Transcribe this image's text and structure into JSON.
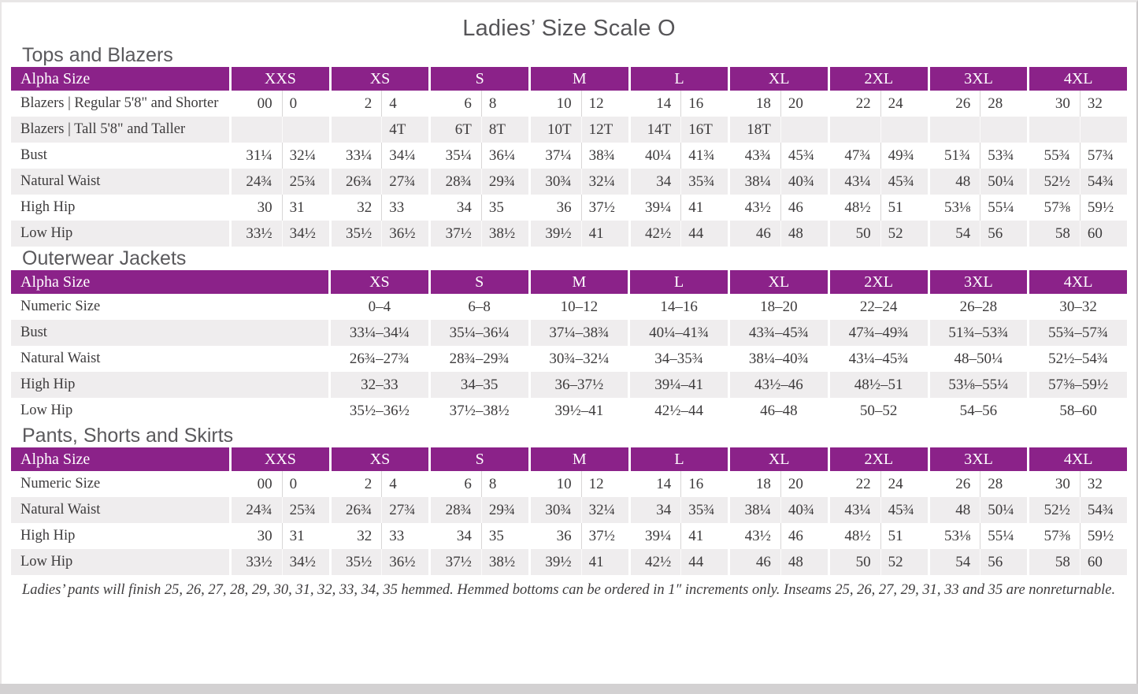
{
  "page": {
    "title": "Ladies’ Size Scale O",
    "footnote": "Ladies’ pants will finish 25, 26, 27, 28, 29, 30, 31, 32, 33, 34, 35 hemmed. Hemmed bottoms can be ordered in 1″ increments only. Inseams 25, 26, 27, 29, 31, 33 and 35 are nonreturnable."
  },
  "colors": {
    "accent": "#8b2289",
    "stripe": "#efedee",
    "heading_text": "#5a595c",
    "body_text": "#3d3b3c",
    "header_text": "#ffffff"
  },
  "tables": [
    {
      "heading": "Tops and Blazers",
      "type": "paired",
      "header_label": "Alpha Size",
      "sizes": [
        "XXS",
        "XS",
        "S",
        "M",
        "L",
        "XL",
        "2XL",
        "3XL",
        "4XL"
      ],
      "rows": [
        {
          "label": "Blazers | Regular 5'8\" and Shorter",
          "pairs": [
            [
              "00",
              "0"
            ],
            [
              "2",
              "4"
            ],
            [
              "6",
              "8"
            ],
            [
              "10",
              "12"
            ],
            [
              "14",
              "16"
            ],
            [
              "18",
              "20"
            ],
            [
              "22",
              "24"
            ],
            [
              "26",
              "28"
            ],
            [
              "30",
              "32"
            ]
          ]
        },
        {
          "label": "Blazers | Tall 5'8\" and Taller",
          "pairs": [
            [
              "",
              ""
            ],
            [
              "",
              "4T"
            ],
            [
              "6T",
              "8T"
            ],
            [
              "10T",
              "12T"
            ],
            [
              "14T",
              "16T"
            ],
            [
              "18T",
              ""
            ],
            [
              "",
              ""
            ],
            [
              "",
              ""
            ],
            [
              "",
              ""
            ]
          ]
        },
        {
          "label": "Bust",
          "pairs": [
            [
              "31¼",
              "32¼"
            ],
            [
              "33¼",
              "34¼"
            ],
            [
              "35¼",
              "36¼"
            ],
            [
              "37¼",
              "38¾"
            ],
            [
              "40¼",
              "41¾"
            ],
            [
              "43¾",
              "45¾"
            ],
            [
              "47¾",
              "49¾"
            ],
            [
              "51¾",
              "53¾"
            ],
            [
              "55¾",
              "57¾"
            ]
          ]
        },
        {
          "label": "Natural Waist",
          "pairs": [
            [
              "24¾",
              "25¾"
            ],
            [
              "26¾",
              "27¾"
            ],
            [
              "28¾",
              "29¾"
            ],
            [
              "30¾",
              "32¼"
            ],
            [
              "34",
              "35¾"
            ],
            [
              "38¼",
              "40¾"
            ],
            [
              "43¼",
              "45¾"
            ],
            [
              "48",
              "50¼"
            ],
            [
              "52½",
              "54¾"
            ]
          ]
        },
        {
          "label": "High Hip",
          "pairs": [
            [
              "30",
              "31"
            ],
            [
              "32",
              "33"
            ],
            [
              "34",
              "35"
            ],
            [
              "36",
              "37½"
            ],
            [
              "39¼",
              "41"
            ],
            [
              "43½",
              "46"
            ],
            [
              "48½",
              "51"
            ],
            [
              "53⅛",
              "55¼"
            ],
            [
              "57⅜",
              "59½"
            ]
          ]
        },
        {
          "label": "Low Hip",
          "pairs": [
            [
              "33½",
              "34½"
            ],
            [
              "35½",
              "36½"
            ],
            [
              "37½",
              "38½"
            ],
            [
              "39½",
              "41"
            ],
            [
              "42½",
              "44"
            ],
            [
              "46",
              "48"
            ],
            [
              "50",
              "52"
            ],
            [
              "54",
              "56"
            ],
            [
              "58",
              "60"
            ]
          ]
        }
      ]
    },
    {
      "heading": "Outerwear Jackets",
      "type": "single",
      "header_label": "Alpha Size",
      "sizes": [
        "XS",
        "S",
        "M",
        "L",
        "XL",
        "2XL",
        "3XL",
        "4XL"
      ],
      "rows": [
        {
          "label": "Numeric Size",
          "values": [
            "0–4",
            "6–8",
            "10–12",
            "14–16",
            "18–20",
            "22–24",
            "26–28",
            "30–32"
          ]
        },
        {
          "label": "Bust",
          "values": [
            "33¼–34¼",
            "35¼–36¼",
            "37¼–38¾",
            "40¼–41¾",
            "43¾–45¾",
            "47¾–49¾",
            "51¾–53¾",
            "55¾–57¾"
          ]
        },
        {
          "label": "Natural Waist",
          "values": [
            "26¾–27¾",
            "28¾–29¾",
            "30¾–32¼",
            "34–35¾",
            "38¼–40¾",
            "43¼–45¾",
            "48–50¼",
            "52½–54¾"
          ]
        },
        {
          "label": "High Hip",
          "values": [
            "32–33",
            "34–35",
            "36–37½",
            "39¼–41",
            "43½–46",
            "48½–51",
            "53⅛–55¼",
            "57⅜–59½"
          ]
        },
        {
          "label": "Low Hip",
          "values": [
            "35½–36½",
            "37½–38½",
            "39½–41",
            "42½–44",
            "46–48",
            "50–52",
            "54–56",
            "58–60"
          ]
        }
      ]
    },
    {
      "heading": "Pants, Shorts and Skirts",
      "type": "paired",
      "header_label": "Alpha Size",
      "sizes": [
        "XXS",
        "XS",
        "S",
        "M",
        "L",
        "XL",
        "2XL",
        "3XL",
        "4XL"
      ],
      "rows": [
        {
          "label": "Numeric Size",
          "pairs": [
            [
              "00",
              "0"
            ],
            [
              "2",
              "4"
            ],
            [
              "6",
              "8"
            ],
            [
              "10",
              "12"
            ],
            [
              "14",
              "16"
            ],
            [
              "18",
              "20"
            ],
            [
              "22",
              "24"
            ],
            [
              "26",
              "28"
            ],
            [
              "30",
              "32"
            ]
          ]
        },
        {
          "label": "Natural Waist",
          "pairs": [
            [
              "24¾",
              "25¾"
            ],
            [
              "26¾",
              "27¾"
            ],
            [
              "28¾",
              "29¾"
            ],
            [
              "30¾",
              "32¼"
            ],
            [
              "34",
              "35¾"
            ],
            [
              "38¼",
              "40¾"
            ],
            [
              "43¼",
              "45¾"
            ],
            [
              "48",
              "50¼"
            ],
            [
              "52½",
              "54¾"
            ]
          ]
        },
        {
          "label": "High Hip",
          "pairs": [
            [
              "30",
              "31"
            ],
            [
              "32",
              "33"
            ],
            [
              "34",
              "35"
            ],
            [
              "36",
              "37½"
            ],
            [
              "39¼",
              "41"
            ],
            [
              "43½",
              "46"
            ],
            [
              "48½",
              "51"
            ],
            [
              "53⅛",
              "55¼"
            ],
            [
              "57⅜",
              "59½"
            ]
          ]
        },
        {
          "label": "Low Hip",
          "pairs": [
            [
              "33½",
              "34½"
            ],
            [
              "35½",
              "36½"
            ],
            [
              "37½",
              "38½"
            ],
            [
              "39½",
              "41"
            ],
            [
              "42½",
              "44"
            ],
            [
              "46",
              "48"
            ],
            [
              "50",
              "52"
            ],
            [
              "54",
              "56"
            ],
            [
              "58",
              "60"
            ]
          ]
        }
      ]
    }
  ]
}
